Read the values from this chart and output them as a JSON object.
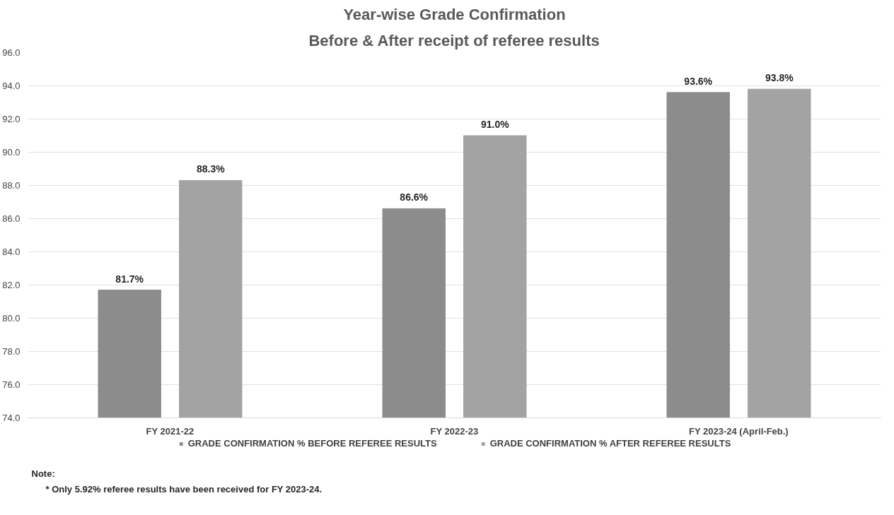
{
  "chart_data": {
    "type": "bar",
    "title": "Year-wise Grade Confirmation",
    "subtitle": "Before & After receipt of referee results",
    "categories": [
      "FY 2021-22",
      "FY 2022-23",
      "FY 2023-24 (April-Feb.)"
    ],
    "series": [
      {
        "name": "GRADE CONFIRMATION % BEFORE REFEREE RESULTS",
        "color": "#8c8c8c",
        "values": [
          81.7,
          86.6,
          93.6
        ],
        "value_labels": [
          "81.7%",
          "86.6%",
          "93.6%"
        ]
      },
      {
        "name": "GRADE CONFIRMATION % AFTER REFEREE RESULTS",
        "color": "#a3a3a3",
        "values": [
          88.3,
          91.0,
          93.8
        ],
        "value_labels": [
          "88.3%",
          "91.0%",
          "93.8%"
        ]
      }
    ],
    "ylim": [
      74,
      96
    ],
    "yticks": [
      {
        "value": 74,
        "label": "74.0"
      },
      {
        "value": 76,
        "label": "76.0"
      },
      {
        "value": 78,
        "label": "78.0"
      },
      {
        "value": 80,
        "label": "80.0"
      },
      {
        "value": 82,
        "label": "82.0"
      },
      {
        "value": 84,
        "label": "84.0"
      },
      {
        "value": 86,
        "label": "86.0"
      },
      {
        "value": 88,
        "label": "88.0"
      },
      {
        "value": 90,
        "label": "90.0"
      },
      {
        "value": 92,
        "label": "92.0"
      },
      {
        "value": 94,
        "label": "94.0"
      },
      {
        "value": 96,
        "label": "96.0"
      }
    ],
    "grid": "y",
    "legend": "bottom",
    "annotations": [
      "Note:",
      "* Only 5.92% referee results have been received for FY 2023-24."
    ]
  }
}
